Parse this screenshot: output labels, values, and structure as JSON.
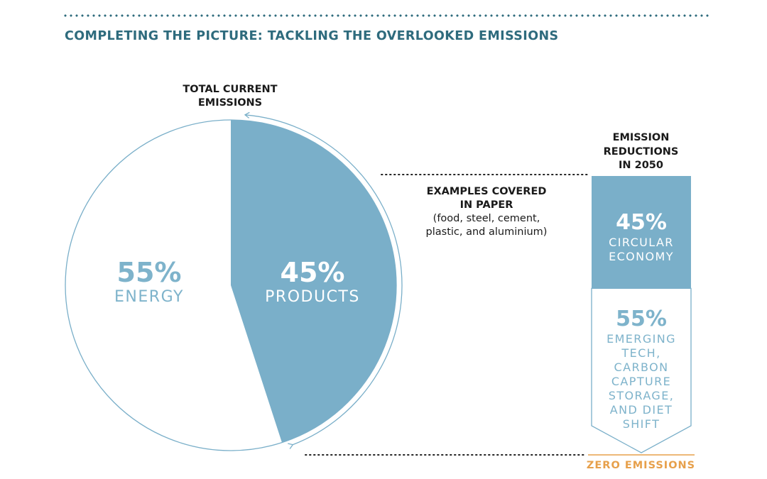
{
  "header": {
    "title": "COMPLETING THE PICTURE: TACKLING THE OVERLOOKED EMISSIONS"
  },
  "colors": {
    "accent": "#2e6b7d",
    "products": "#7aafc9",
    "energy_outline": "#7aafc9",
    "zero": "#e7a04b"
  },
  "pie": {
    "heading_line1": "TOTAL CURRENT",
    "heading_line2": "EMISSIONS",
    "energy_pct": "55%",
    "energy_label": "ENERGY",
    "products_pct": "45%",
    "products_label": "PRODUCTS"
  },
  "examples": {
    "line1": "EXAMPLES COVERED",
    "line2": "IN PAPER",
    "line3": "(food, steel, cement,",
    "line4": "plastic, and aluminium)"
  },
  "reductions": {
    "heading_line1": "EMISSION",
    "heading_line2": "REDUCTIONS",
    "heading_line3": "IN 2050",
    "circular_pct": "45%",
    "circular_line1": "CIRCULAR",
    "circular_line2": "ECONOMY",
    "emerging_pct": "55%",
    "emerging_lines": [
      "EMERGING",
      "TECH,",
      "CARBON",
      "CAPTURE",
      "STORAGE,",
      "AND DIET",
      "SHIFT"
    ],
    "zero_label": "ZERO EMISSIONS"
  },
  "chart_data": [
    {
      "type": "pie",
      "title": "TOTAL CURRENT EMISSIONS",
      "categories": [
        "PRODUCTS",
        "ENERGY"
      ],
      "values": [
        45,
        55
      ],
      "unit": "%"
    },
    {
      "type": "bar",
      "title": "EMISSION REDUCTIONS IN 2050",
      "stacked": true,
      "categories": [
        "CIRCULAR ECONOMY",
        "EMERGING TECH, CARBON CAPTURE STORAGE, AND DIET SHIFT"
      ],
      "values": [
        45,
        55
      ],
      "unit": "%"
    }
  ]
}
